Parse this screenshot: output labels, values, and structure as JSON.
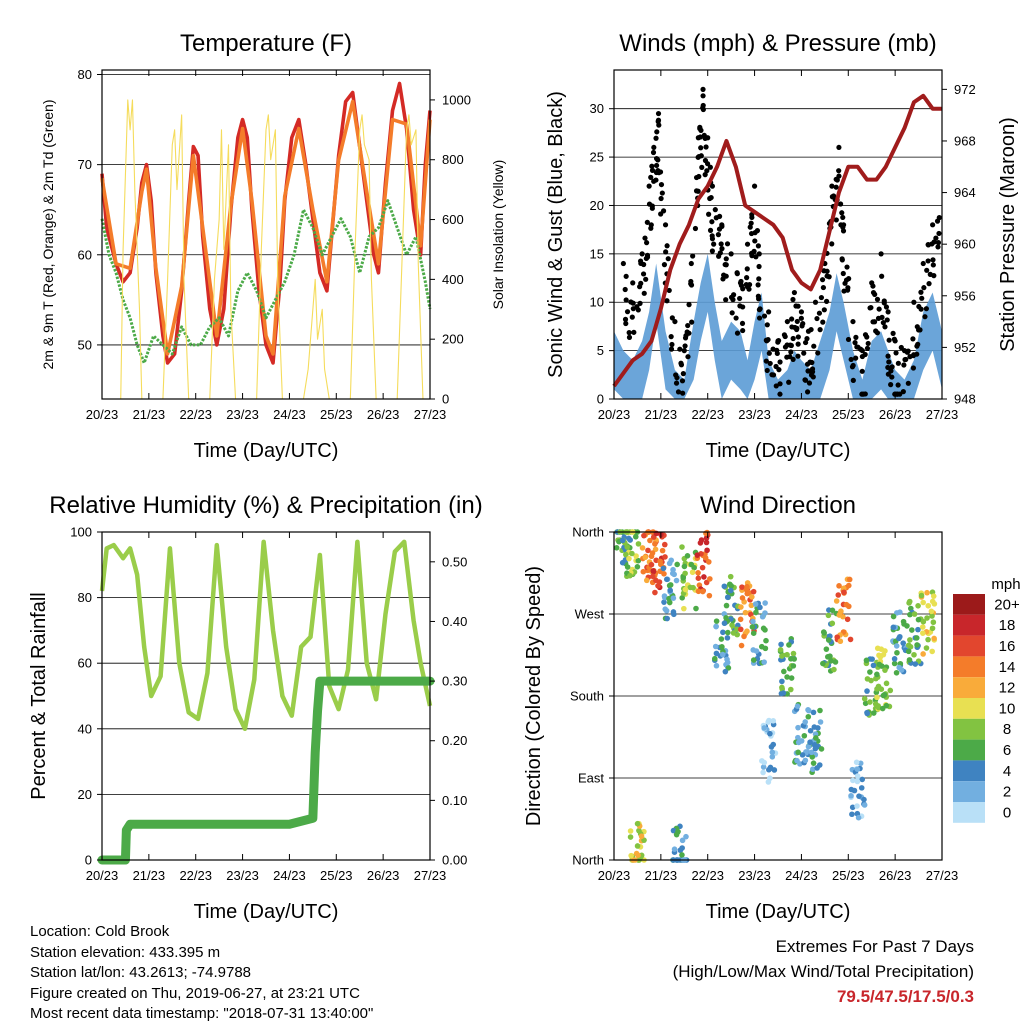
{
  "chart_data": [
    {
      "type": "line",
      "title": "Temperature (F)",
      "xlabel": "Time (Day/UTC)",
      "ylabel": "2m & 9m T (Red, Orange) & 2m Td (Green)",
      "y2label": "Solar Insolation (Yellow)",
      "x_ticks": [
        "20/23",
        "21/23",
        "22/23",
        "23/23",
        "24/23",
        "25/23",
        "26/23",
        "27/23"
      ],
      "xlim": [
        0,
        7
      ],
      "ylim": [
        44,
        80.5
      ],
      "y_ticks": [
        50,
        60,
        70,
        80
      ],
      "y2lim": [
        0,
        1100
      ],
      "y2_ticks": [
        0,
        200,
        400,
        600,
        800,
        1000
      ],
      "grid": "horizontal",
      "colors": {
        "t2m": "#d42a25",
        "t9m": "#f47c2a",
        "td2m": "#4caa48",
        "solar": "#f5dc5c"
      },
      "series": [
        {
          "key": "t2m",
          "x": [
            0,
            0.1,
            0.2,
            0.3,
            0.45,
            0.6,
            0.75,
            0.85,
            0.95,
            1.05,
            1.15,
            1.3,
            1.4,
            1.55,
            1.7,
            1.85,
            1.95,
            2.05,
            2.15,
            2.3,
            2.45,
            2.6,
            2.75,
            2.9,
            3.0,
            3.1,
            3.2,
            3.35,
            3.5,
            3.65,
            3.8,
            3.9,
            4.05,
            4.2,
            4.35,
            4.5,
            4.65,
            4.8,
            4.9,
            5.05,
            5.2,
            5.35,
            5.5,
            5.65,
            5.8,
            5.9,
            6.05,
            6.2,
            6.35,
            6.5,
            6.65,
            6.8,
            6.9,
            7.0
          ],
          "y": [
            69,
            63,
            61,
            59,
            57,
            58,
            63,
            68,
            70,
            66,
            58,
            51,
            48,
            49,
            56,
            66,
            72,
            71,
            62,
            54,
            50,
            54,
            65,
            73,
            75,
            73,
            65,
            56,
            50,
            48,
            57,
            66,
            73,
            75,
            70,
            64,
            58,
            56,
            62,
            71,
            77,
            78,
            72,
            66,
            60,
            58,
            68,
            76,
            79,
            74,
            65,
            60,
            70,
            76
          ]
        },
        {
          "key": "t9m",
          "x": [
            0,
            0.3,
            0.6,
            0.85,
            0.95,
            1.15,
            1.4,
            1.7,
            1.95,
            2.15,
            2.45,
            2.75,
            3.0,
            3.2,
            3.5,
            3.65,
            3.9,
            4.2,
            4.5,
            4.8,
            5.05,
            5.35,
            5.65,
            5.9,
            6.2,
            6.5,
            6.8,
            7.0
          ],
          "y": [
            68.5,
            59,
            58.5,
            67,
            69.5,
            58.5,
            49,
            56.5,
            71,
            63,
            51,
            65.5,
            74,
            66,
            51,
            49,
            66.5,
            74,
            65,
            57,
            70.5,
            77,
            67,
            59,
            75,
            74.5,
            61,
            75
          ]
        },
        {
          "key": "td2m",
          "x": [
            0,
            0.15,
            0.3,
            0.45,
            0.6,
            0.75,
            0.9,
            1.1,
            1.3,
            1.5,
            1.7,
            1.9,
            2.1,
            2.3,
            2.5,
            2.7,
            2.9,
            3.1,
            3.3,
            3.5,
            3.7,
            3.9,
            4.1,
            4.3,
            4.5,
            4.7,
            4.9,
            5.1,
            5.3,
            5.5,
            5.7,
            5.9,
            6.1,
            6.3,
            6.5,
            6.7,
            6.9,
            7.0
          ],
          "y": [
            64,
            60,
            58,
            55,
            53,
            50,
            48,
            51,
            50,
            49,
            52,
            50,
            50,
            52,
            53,
            51,
            56,
            58,
            56,
            53,
            55,
            57,
            60,
            65,
            63,
            60,
            62,
            64,
            62,
            58,
            62,
            63,
            66,
            63,
            60,
            62,
            57,
            54
          ]
        },
        {
          "key": "solar",
          "x": [
            0.4,
            0.45,
            0.55,
            0.6,
            0.65,
            0.7,
            0.8,
            0.85,
            1.3,
            1.4,
            1.5,
            1.55,
            1.6,
            1.7,
            1.75,
            1.85,
            2.3,
            2.4,
            2.5,
            2.55,
            2.6,
            2.7,
            2.75,
            2.85,
            3.3,
            3.4,
            3.5,
            3.55,
            3.6,
            3.7,
            3.75,
            3.85,
            4.3,
            4.4,
            4.5,
            4.55,
            4.6,
            4.7,
            4.75,
            4.85,
            5.3,
            5.4,
            5.5,
            5.55,
            5.6,
            5.7,
            5.75,
            5.85,
            6.3,
            6.4,
            6.5,
            6.55,
            6.6,
            6.7,
            6.75,
            6.85
          ],
          "y": [
            0,
            500,
            1000,
            900,
            1000,
            700,
            300,
            0,
            0,
            400,
            850,
            900,
            700,
            950,
            400,
            0,
            0,
            400,
            600,
            900,
            500,
            850,
            300,
            0,
            0,
            500,
            900,
            950,
            800,
            900,
            400,
            0,
            0,
            100,
            300,
            400,
            200,
            300,
            100,
            0,
            0,
            500,
            900,
            950,
            850,
            800,
            400,
            0,
            0,
            450,
            900,
            950,
            850,
            900,
            450,
            0
          ]
        }
      ]
    },
    {
      "type": "scatter",
      "title": "Winds (mph) & Pressure (mb)",
      "xlabel": "Time (Day/UTC)",
      "ylabel": "Sonic Wind & Gust (Blue, Black)",
      "y2label": "Station Pressure (Maroon)",
      "x_ticks": [
        "20/23",
        "21/23",
        "22/23",
        "23/23",
        "24/23",
        "25/23",
        "26/23",
        "27/23"
      ],
      "xlim": [
        0,
        7
      ],
      "ylim": [
        0,
        34
      ],
      "y_ticks": [
        0,
        5,
        10,
        15,
        20,
        25,
        30
      ],
      "y2lim": [
        948,
        973.5
      ],
      "y2_ticks": [
        948,
        952,
        956,
        960,
        964,
        968,
        972
      ],
      "grid": "horizontal",
      "colors": {
        "wind": "#5b9bd5",
        "gust": "#000000",
        "pressure": "#a01c1c"
      },
      "series": [
        {
          "key": "wind",
          "x": [
            0,
            0.2,
            0.4,
            0.6,
            0.75,
            0.9,
            1.1,
            1.3,
            1.5,
            1.7,
            1.85,
            2.0,
            2.15,
            2.3,
            2.5,
            2.7,
            2.85,
            3.0,
            3.15,
            3.3,
            3.5,
            3.7,
            3.85,
            4.0,
            4.2,
            4.4,
            4.6,
            4.75,
            4.9,
            5.1,
            5.3,
            5.5,
            5.7,
            5.85,
            6.0,
            6.2,
            6.4,
            6.6,
            6.8,
            7.0
          ],
          "y": [
            7,
            5,
            4,
            6,
            9,
            14,
            7,
            3,
            2,
            8,
            12,
            15,
            10,
            6,
            8,
            7,
            4,
            8,
            11,
            4,
            2,
            3,
            5,
            4,
            3,
            6,
            9,
            13,
            10,
            5,
            2,
            6,
            7,
            5,
            3,
            2,
            4,
            9,
            11,
            7
          ]
        },
        {
          "key": "gust",
          "x": [
            0.2,
            0.4,
            0.6,
            0.75,
            0.85,
            0.95,
            1.1,
            1.3,
            1.5,
            1.65,
            1.8,
            1.9,
            2.0,
            2.1,
            2.3,
            2.5,
            2.7,
            2.85,
            3.0,
            3.1,
            3.3,
            3.5,
            3.7,
            3.85,
            4.0,
            4.15,
            4.3,
            4.5,
            4.65,
            4.8,
            4.9,
            5.1,
            5.3,
            5.5,
            5.7,
            5.85,
            6.0,
            6.2,
            6.4,
            6.6,
            6.8,
            6.95
          ],
          "y": [
            14,
            12,
            15,
            22,
            26,
            29.5,
            18,
            8,
            5,
            14,
            27,
            32,
            27,
            22,
            18,
            15,
            12,
            16,
            22,
            15,
            9,
            6,
            8,
            11,
            9,
            7,
            10,
            14,
            22,
            26,
            18,
            8,
            5,
            12,
            15,
            9,
            6,
            5,
            10,
            14,
            18,
            19
          ]
        },
        {
          "key": "pressure",
          "x": [
            0,
            0.2,
            0.4,
            0.6,
            0.8,
            1.0,
            1.2,
            1.4,
            1.6,
            1.8,
            2.0,
            2.2,
            2.4,
            2.6,
            2.8,
            3.0,
            3.2,
            3.4,
            3.6,
            3.8,
            4.0,
            4.2,
            4.4,
            4.6,
            4.8,
            5.0,
            5.2,
            5.4,
            5.6,
            5.8,
            6.0,
            6.2,
            6.4,
            6.6,
            6.8,
            7.0
          ],
          "y": [
            949,
            950,
            951,
            951.5,
            952.5,
            955,
            958,
            960,
            961.5,
            963.5,
            964.5,
            966,
            968,
            966,
            963,
            962.5,
            962,
            961.5,
            960.5,
            958,
            957,
            956.5,
            958,
            961,
            964,
            966,
            966,
            965,
            965,
            966,
            967.5,
            969,
            971,
            971.5,
            970.5,
            970.5
          ]
        }
      ]
    },
    {
      "type": "line",
      "title": "Relative Humidity (%) & Precipitation (in)",
      "xlabel": "Time (Day/UTC)",
      "ylabel": "Percent & Total Rainfall",
      "x_ticks": [
        "20/23",
        "21/23",
        "22/23",
        "23/23",
        "24/23",
        "25/23",
        "26/23",
        "27/23"
      ],
      "xlim": [
        0,
        7
      ],
      "ylim": [
        0,
        100
      ],
      "y_ticks": [
        0,
        20,
        40,
        60,
        80,
        100
      ],
      "y2lim": [
        0,
        0.55
      ],
      "y2_ticks": [
        "0.00",
        "0.10",
        "0.20",
        "0.30",
        "0.40",
        "0.50"
      ],
      "grid": "horizontal",
      "colors": {
        "rh": "#9acd4a",
        "precip": "#4caa48"
      },
      "series": [
        {
          "key": "rh",
          "x": [
            0,
            0.1,
            0.25,
            0.45,
            0.6,
            0.75,
            0.9,
            1.05,
            1.25,
            1.45,
            1.65,
            1.85,
            2.05,
            2.25,
            2.45,
            2.65,
            2.85,
            3.05,
            3.25,
            3.45,
            3.65,
            3.85,
            4.05,
            4.25,
            4.45,
            4.65,
            4.85,
            5.05,
            5.25,
            5.45,
            5.65,
            5.85,
            6.05,
            6.25,
            6.45,
            6.65,
            6.8,
            7.0
          ],
          "y": [
            82,
            95,
            96,
            92,
            95,
            87,
            65,
            50,
            56,
            95,
            60,
            45,
            43,
            57,
            96,
            65,
            46,
            40,
            55,
            97,
            70,
            50,
            44,
            65,
            68,
            93,
            53,
            46,
            58,
            97,
            60,
            49,
            75,
            94,
            97,
            73,
            60,
            47
          ]
        },
        {
          "key": "precip",
          "x": [
            0,
            0.5,
            0.52,
            0.6,
            1.0,
            2.0,
            3.0,
            4.0,
            4.5,
            4.55,
            4.6,
            4.65,
            4.75,
            5.0,
            6.0,
            7.0
          ],
          "y": [
            0,
            0,
            0.05,
            0.06,
            0.06,
            0.06,
            0.06,
            0.06,
            0.07,
            0.18,
            0.25,
            0.3,
            0.3,
            0.3,
            0.3,
            0.3
          ]
        }
      ]
    },
    {
      "type": "scatter",
      "title": "Wind Direction",
      "xlabel": "Time (Day/UTC)",
      "ylabel": "Direction (Colored By Speed)",
      "x_ticks": [
        "20/23",
        "21/23",
        "22/23",
        "23/23",
        "24/23",
        "25/23",
        "26/23",
        "27/23"
      ],
      "xlim": [
        0,
        7
      ],
      "ylim": [
        0,
        360
      ],
      "y_ticks": [
        "North",
        "East",
        "South",
        "West",
        "North"
      ],
      "y_tick_values": [
        0,
        90,
        180,
        270,
        360
      ],
      "grid": "horizontal",
      "colorbar": {
        "title": "mph",
        "labels": [
          "20+",
          "18",
          "16",
          "14",
          "12",
          "10",
          "8",
          "6",
          "4",
          "2",
          "0"
        ],
        "colors": [
          "#9c1a1a",
          "#c8262b",
          "#e2462e",
          "#f47c2a",
          "#f9ab3a",
          "#e8e052",
          "#82c341",
          "#4caa48",
          "#3f83c1",
          "#72afe0",
          "#b9e0f7"
        ]
      },
      "clusters": [
        {
          "x": 0.2,
          "dir": 355,
          "speed": 6
        },
        {
          "x": 0.4,
          "dir": 345,
          "speed": 8
        },
        {
          "x": 0.75,
          "dir": 340,
          "speed": 14
        },
        {
          "x": 0.95,
          "dir": 325,
          "speed": 16
        },
        {
          "x": 1.2,
          "dir": 300,
          "speed": 4
        },
        {
          "x": 1.6,
          "dir": 310,
          "speed": 8
        },
        {
          "x": 1.9,
          "dir": 325,
          "speed": 16
        },
        {
          "x": 2.3,
          "dir": 240,
          "speed": 4
        },
        {
          "x": 2.5,
          "dir": 280,
          "speed": 6
        },
        {
          "x": 2.85,
          "dir": 270,
          "speed": 14
        },
        {
          "x": 3.1,
          "dir": 250,
          "speed": 4
        },
        {
          "x": 3.3,
          "dir": 120,
          "speed": 2
        },
        {
          "x": 3.7,
          "dir": 210,
          "speed": 6
        },
        {
          "x": 4.0,
          "dir": 140,
          "speed": 4
        },
        {
          "x": 4.3,
          "dir": 130,
          "speed": 4
        },
        {
          "x": 4.6,
          "dir": 240,
          "speed": 6
        },
        {
          "x": 4.9,
          "dir": 275,
          "speed": 14
        },
        {
          "x": 5.2,
          "dir": 80,
          "speed": 2
        },
        {
          "x": 5.5,
          "dir": 190,
          "speed": 6
        },
        {
          "x": 5.75,
          "dir": 200,
          "speed": 8
        },
        {
          "x": 6.1,
          "dir": 240,
          "speed": 4
        },
        {
          "x": 6.4,
          "dir": 250,
          "speed": 6
        },
        {
          "x": 6.7,
          "dir": 260,
          "speed": 10
        },
        {
          "x": 0.5,
          "dir": 5,
          "speed": 10
        },
        {
          "x": 1.4,
          "dir": 3,
          "speed": 4
        }
      ]
    }
  ],
  "footer": {
    "location": "Location: Cold Brook",
    "elevation": "Station elevation: 433.395 m",
    "latlon": "Station lat/lon: 43.2613; -74.9788",
    "created": "Figure created on Thu, 2019-06-27, at 23:21 UTC",
    "timestamp": "Most recent data timestamp: \"2018-07-31 13:40:00\""
  },
  "extremes": {
    "title": "Extremes For Past 7 Days",
    "subtitle": "(High/Low/Max Wind/Total Precipitation)",
    "values": "79.5/47.5/17.5/0.3"
  }
}
